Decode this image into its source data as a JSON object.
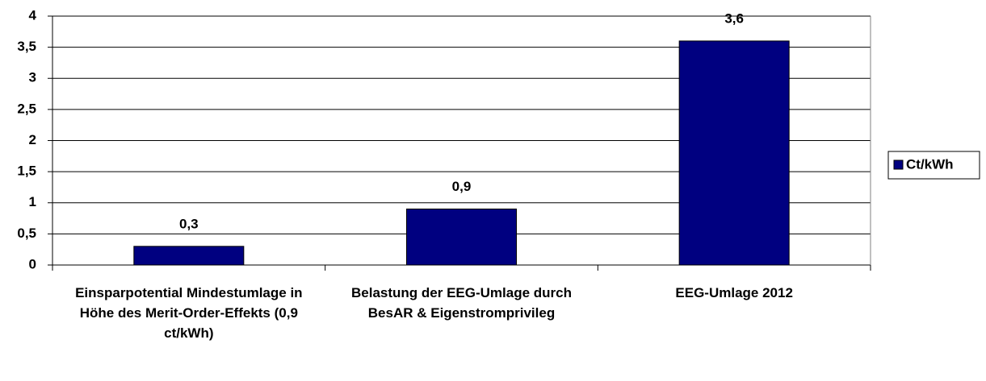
{
  "chart_data": {
    "type": "bar",
    "categories": [
      "Einsparpotential Mindestumlage in Höhe des Merit-Order-Effekts (0,9 ct/kWh)",
      "Belastung der EEG-Umlage durch BesAR & Eigenstromprivileg",
      "EEG-Umlage 2012"
    ],
    "series": [
      {
        "name": "Ct/kWh",
        "color": "#000080",
        "values": [
          0.3,
          0.9,
          3.6
        ],
        "value_labels": [
          "0,3",
          "0,9",
          "3,6"
        ]
      }
    ],
    "ylim": [
      0,
      4
    ],
    "yticks": [
      0,
      {
        "value": 0.5,
        "label": "0,5"
      },
      1,
      {
        "value": 1.5,
        "label": "1,5"
      },
      2,
      {
        "value": 2.5,
        "label": "2,5"
      },
      3,
      {
        "value": 3.5,
        "label": "3,5"
      },
      4
    ],
    "grid": true,
    "legend": "right"
  }
}
